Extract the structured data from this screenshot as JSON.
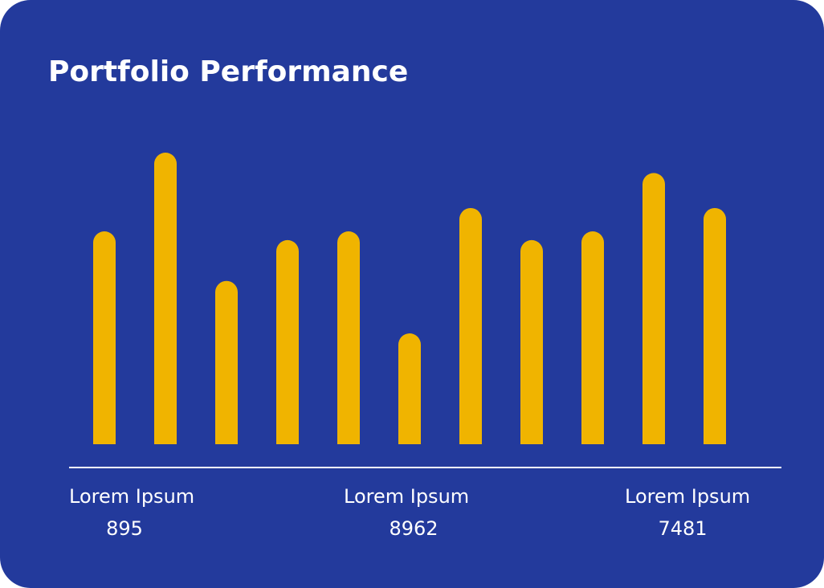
{
  "chart_data": {
    "type": "bar",
    "title": "Portfolio Performance",
    "values": [
      73,
      100,
      56,
      70,
      73,
      38,
      81,
      70,
      73,
      93,
      81
    ],
    "color": "#f0b400",
    "ylim": [
      0,
      100
    ]
  },
  "stats": [
    {
      "label": "Lorem Ipsum",
      "value": 895
    },
    {
      "label": "Lorem Ipsum",
      "value": 8962
    },
    {
      "label": "Lorem Ipsum",
      "value": 7481
    }
  ]
}
